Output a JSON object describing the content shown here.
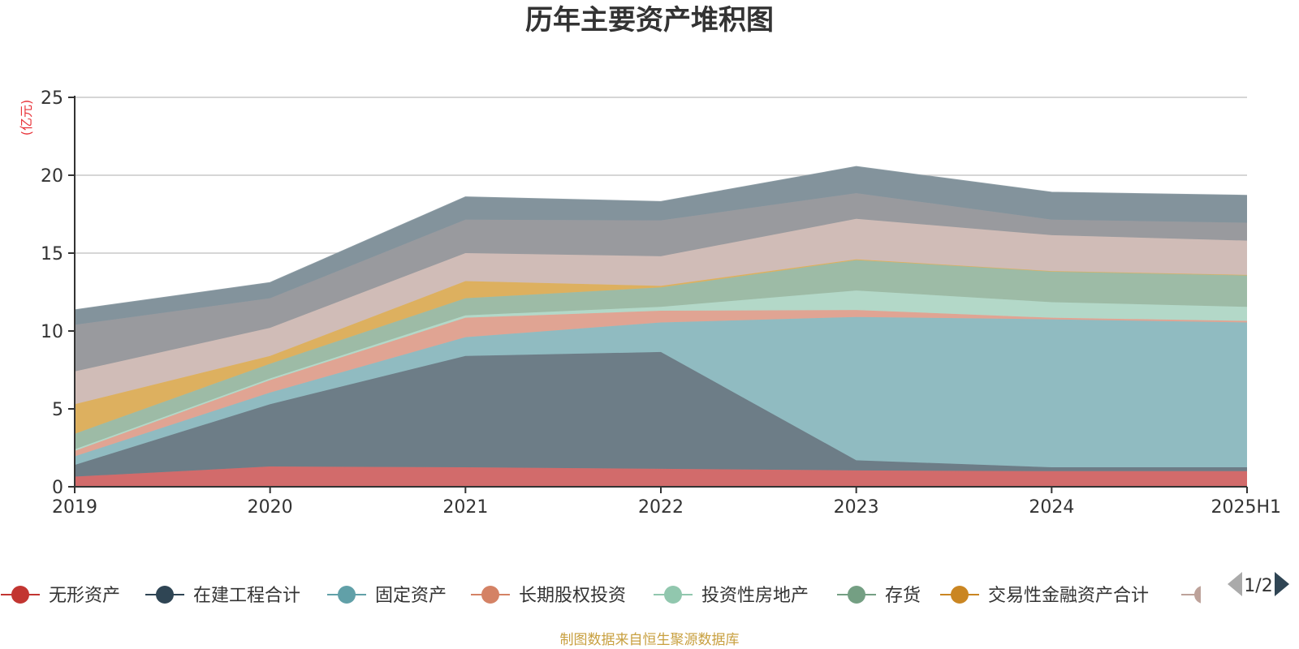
{
  "chart_data": {
    "type": "area",
    "title": "历年主要资产堆积图",
    "unit": "(亿元)",
    "x": [
      "2019",
      "2020",
      "2021",
      "2022",
      "2023",
      "2024",
      "2025H1"
    ],
    "ylim": [
      0,
      25
    ],
    "yticks": [
      0,
      5,
      10,
      15,
      20,
      25
    ],
    "grid": true,
    "stacked": true,
    "series": [
      {
        "name": "无形资产",
        "color": "#c23531",
        "fill": "#d26b6b",
        "values": [
          0.65,
          1.3,
          1.25,
          1.15,
          1.05,
          1.0,
          1.0
        ]
      },
      {
        "name": "在建工程合计",
        "color": "#2f4554",
        "fill": "#6d7d87",
        "values": [
          0.75,
          4.0,
          7.15,
          7.5,
          0.65,
          0.25,
          0.25
        ]
      },
      {
        "name": "固定资产",
        "color": "#61a0a8",
        "fill": "#90bbc1",
        "values": [
          0.55,
          0.75,
          1.2,
          1.9,
          9.2,
          9.5,
          9.3
        ]
      },
      {
        "name": "长期股权投资",
        "color": "#d48265",
        "fill": "#e0a493",
        "values": [
          0.35,
          0.8,
          1.25,
          0.75,
          0.45,
          0.1,
          0.1
        ]
      },
      {
        "name": "投资性房地产",
        "color": "#91c7ae",
        "fill": "#b3d8c8",
        "values": [
          0.1,
          0.1,
          0.15,
          0.25,
          1.25,
          1.0,
          0.9
        ]
      },
      {
        "name": "存货",
        "color": "#749f83",
        "fill": "#9dbba6",
        "values": [
          1.0,
          0.95,
          1.1,
          1.25,
          1.95,
          2.0,
          2.05
        ]
      },
      {
        "name": "交易性金融资产合计",
        "color": "#ca8622",
        "fill": "#ddb05f",
        "values": [
          1.9,
          0.5,
          1.1,
          0.1,
          0.05,
          0.0,
          0.0
        ]
      },
      {
        "name": "",
        "color": "#bda29a",
        "fill": "#d0bcb7",
        "values": [
          2.1,
          1.8,
          1.8,
          1.9,
          2.6,
          2.3,
          2.2
        ]
      },
      {
        "name": "",
        "color": "#6e7074",
        "fill": "#999a9e",
        "values": [
          3.0,
          1.9,
          2.15,
          2.3,
          1.65,
          1.0,
          1.15
        ]
      },
      {
        "name": "",
        "color": "#546570",
        "fill": "#83939c",
        "values": [
          0.95,
          1.0,
          1.45,
          1.2,
          1.7,
          1.75,
          1.75
        ]
      }
    ]
  },
  "legend": {
    "page_indicator": "1/2",
    "prev_icon": "triangle-left-icon",
    "next_icon": "triangle-right-icon",
    "last_partial_color": "#bda29a"
  },
  "footer": {
    "source": "制图数据来自恒生聚源数据库"
  },
  "colors": {
    "axis": "#333333",
    "grid": "#c8c8c8",
    "unit": "#e8343a",
    "source": "#c8a040"
  }
}
